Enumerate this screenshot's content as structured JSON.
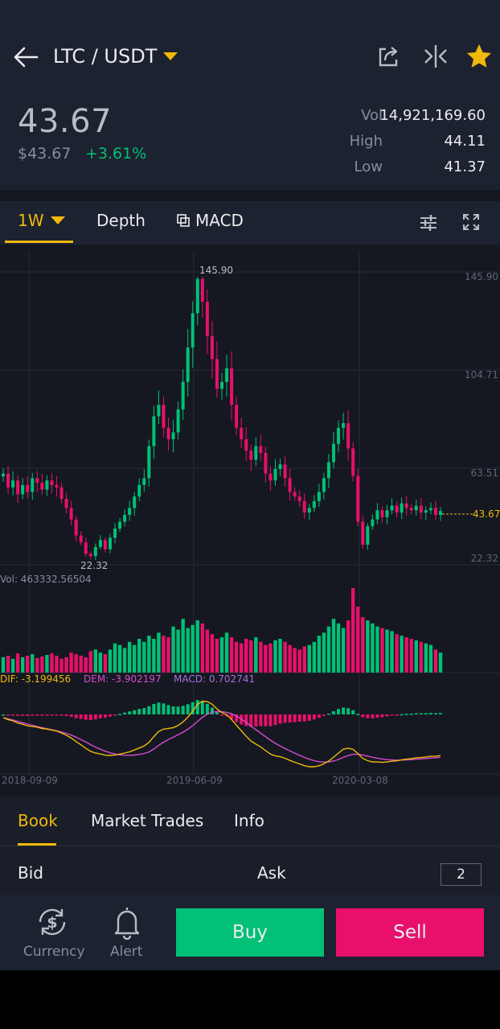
{
  "header": {
    "pair": "LTC / USDT",
    "icons": [
      "back-arrow-icon",
      "share-icon",
      "compare-icon",
      "star-icon"
    ],
    "star_color": "#f0b90b"
  },
  "ticker": {
    "last_price": "43.67",
    "fiat_price": "$43.67",
    "change": "+3.61%",
    "vol_label": "Vol",
    "vol_value": "14,921,169.60",
    "high_label": "High",
    "high_value": "44.11",
    "low_label": "Low",
    "low_value": "41.37"
  },
  "chart_tabs": {
    "interval": "1W",
    "depth": "Depth",
    "indicator": "MACD",
    "icons": [
      "settings-sliders-icon",
      "fullscreen-icon"
    ]
  },
  "chart_data": {
    "type": "candlestick",
    "price_axis": [
      "145.90",
      "104.71",
      "63.51",
      "22.32"
    ],
    "max_label": "145.90",
    "min_label": "22.32",
    "current_price_label": "43.67",
    "volume_label": "Vol: 463332.56504",
    "macd": {
      "dif_label": "DIF: -3.199456",
      "dem_label": "DEM: -3.902197",
      "macd_label": "MACD: 0.702741"
    },
    "dates": [
      "2018-09-09",
      "2019-06-09",
      "2020-03-08"
    ],
    "colors": {
      "up": "#02c076",
      "down": "#e8106a",
      "dif": "#f0b90b",
      "dem": "#d64bd0",
      "macd_label": "#a86fdc"
    },
    "closes": [
      60,
      54,
      57,
      51,
      55,
      52,
      58,
      56,
      53,
      57,
      55,
      54,
      49,
      45,
      40,
      33,
      30,
      25,
      24,
      28,
      31,
      27,
      32,
      36,
      39,
      42,
      45,
      50,
      55,
      58,
      72,
      85,
      90,
      80,
      75,
      78,
      88,
      100,
      115,
      130,
      145,
      135,
      120,
      110,
      97,
      100,
      106,
      90,
      80,
      75,
      70,
      66,
      72,
      69,
      60,
      57,
      62,
      64,
      58,
      52,
      50,
      48,
      43,
      45,
      48,
      52,
      58,
      65,
      73,
      80,
      82,
      71,
      59,
      39,
      29,
      37,
      40,
      44,
      41,
      44,
      46,
      43,
      47,
      45,
      44,
      46,
      43,
      44,
      45,
      42,
      43.67
    ],
    "volumes": [
      20,
      22,
      18,
      25,
      20,
      22,
      24,
      19,
      21,
      23,
      25,
      22,
      18,
      20,
      26,
      24,
      22,
      20,
      28,
      30,
      26,
      24,
      30,
      38,
      36,
      32,
      40,
      36,
      44,
      40,
      48,
      44,
      52,
      48,
      46,
      60,
      56,
      70,
      58,
      62,
      68,
      64,
      56,
      50,
      44,
      46,
      52,
      46,
      40,
      38,
      44,
      42,
      46,
      40,
      36,
      38,
      42,
      44,
      40,
      36,
      32,
      30,
      34,
      36,
      40,
      48,
      52,
      60,
      70,
      64,
      58,
      68,
      110,
      86,
      72,
      68,
      64,
      60,
      58,
      56,
      54,
      50,
      48,
      46,
      44,
      42,
      40,
      38,
      36,
      30,
      26
    ]
  },
  "book_tabs": [
    "Book",
    "Market Trades",
    "Info"
  ],
  "order_book": {
    "bid": "Bid",
    "ask": "Ask",
    "depth": "2"
  },
  "bottom": {
    "currency_label": "Currency",
    "alert_label": "Alert",
    "buy_label": "Buy",
    "sell_label": "Sell"
  }
}
